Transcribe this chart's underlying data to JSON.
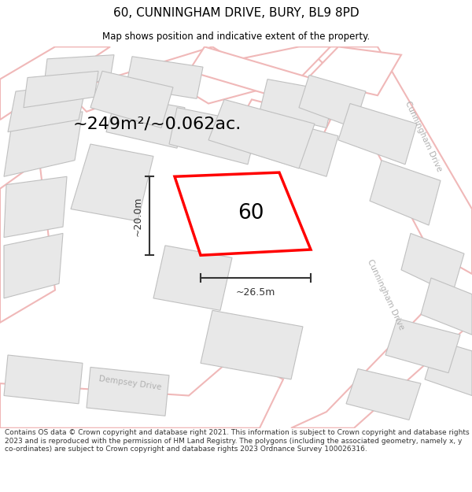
{
  "title": "60, CUNNINGHAM DRIVE, BURY, BL9 8PD",
  "subtitle": "Map shows position and indicative extent of the property.",
  "area_text": "~249m²/~0.062ac.",
  "property_number": "60",
  "dim_width": "~26.5m",
  "dim_height": "~20.0m",
  "footer_text": "Contains OS data © Crown copyright and database right 2021. This information is subject to Crown copyright and database rights 2023 and is reproduced with the permission of HM Land Registry. The polygons (including the associated geometry, namely x, y co-ordinates) are subject to Crown copyright and database rights 2023 Ordnance Survey 100026316.",
  "bg_color": "#ffffff",
  "map_bg": "#ffffff",
  "road_outline_color": "#f0b8b8",
  "road_fill_color": "#ffffff",
  "building_fill_color": "#e8e8e8",
  "building_outline_color": "#c0c0c0",
  "property_fill_color": "#ffffff",
  "property_outline_color": "#ff0000",
  "dim_color": "#333333",
  "street_label_color": "#b0b0b0",
  "title_color": "#000000",
  "footer_color": "#333333",
  "footer_bg": "#f5f5f5"
}
